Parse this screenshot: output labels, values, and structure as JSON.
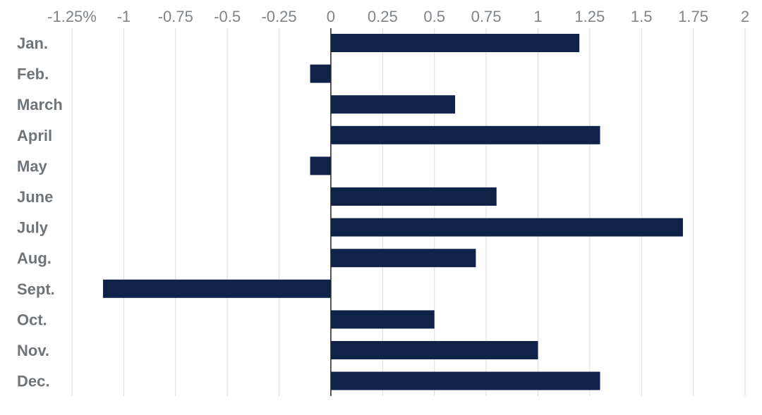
{
  "chart_data": {
    "type": "bar",
    "orientation": "horizontal",
    "categories": [
      "Jan.",
      "Feb.",
      "March",
      "April",
      "May",
      "June",
      "July",
      "Aug.",
      "Sept.",
      "Oct.",
      "Nov.",
      "Dec."
    ],
    "values": [
      1.2,
      -0.1,
      0.6,
      1.3,
      -0.1,
      0.8,
      1.7,
      0.7,
      -1.1,
      0.5,
      1.0,
      1.3
    ],
    "xlim": [
      -1.25,
      2
    ],
    "ticks": [
      -1.25,
      -1,
      -0.75,
      -0.5,
      -0.25,
      0,
      0.25,
      0.5,
      0.75,
      1,
      1.25,
      1.5,
      1.75,
      2
    ],
    "tick_labels": [
      "-1.25%",
      "-1",
      "-0.75",
      "-0.5",
      "-0.25",
      "0",
      "0.25",
      "0.5",
      "0.75",
      "1",
      "1.25",
      "1.5",
      "1.75",
      "2"
    ],
    "x_axis_position": "top",
    "grid": true,
    "bar_color": "#0f2248",
    "title": "",
    "xlabel": "",
    "ylabel": ""
  }
}
